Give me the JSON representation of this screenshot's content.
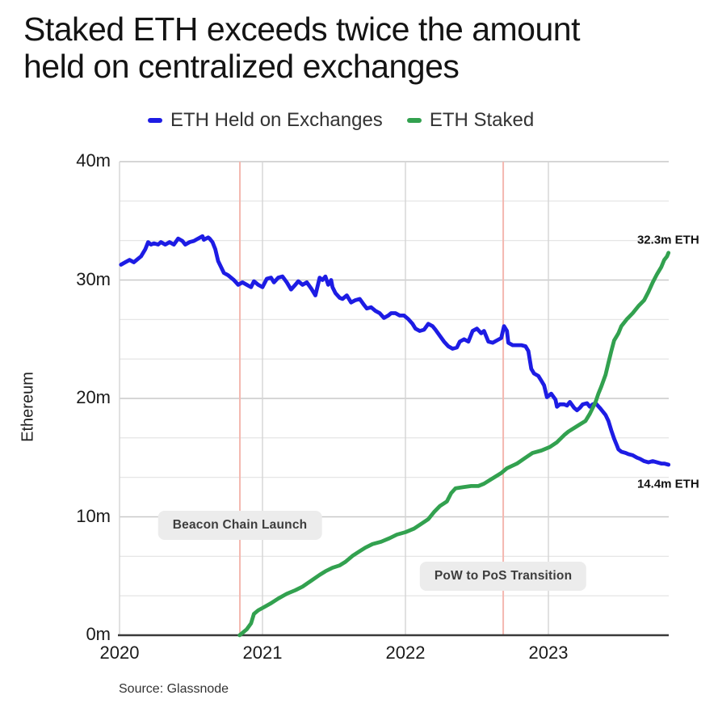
{
  "title": "Staked ETH exceeds twice the amount\nheld on centralized exchanges",
  "source": "Source: Glassnode",
  "chart_data": {
    "type": "line",
    "title": "Staked ETH exceeds twice the amount held on centralized exchanges",
    "xlabel": "",
    "ylabel": "Ethereum",
    "ylim": [
      0,
      40
    ],
    "xlim": [
      2020.0,
      2023.85
    ],
    "grid": "on",
    "grid_minor_step": 3.3333333,
    "legend_position": "top",
    "yticks": [
      {
        "value": 40,
        "label": "40m"
      },
      {
        "value": 30,
        "label": "30m"
      },
      {
        "value": 20,
        "label": "20m"
      },
      {
        "value": 10,
        "label": "10m"
      },
      {
        "value": 0,
        "label": "0m"
      }
    ],
    "xticks": [
      {
        "value": 2020,
        "label": "2020"
      },
      {
        "value": 2021,
        "label": "2021"
      },
      {
        "value": 2022,
        "label": "2022"
      },
      {
        "value": 2023,
        "label": "2023"
      }
    ],
    "event_line_color": "#f4b8b0",
    "events": [
      {
        "x": 2020.842,
        "name": "Beacon Chain Launch"
      },
      {
        "x": 2022.684,
        "name": "PoW to PoS Transition"
      }
    ],
    "series": [
      {
        "name": "ETH Held on Exchanges",
        "color": "#1d1ce4",
        "units": "million ETH",
        "points": [
          [
            2020.01,
            31.3
          ],
          [
            2020.04,
            31.5
          ],
          [
            2020.07,
            31.7
          ],
          [
            2020.1,
            31.5
          ],
          [
            2020.12,
            31.7
          ],
          [
            2020.15,
            32.0
          ],
          [
            2020.18,
            32.6
          ],
          [
            2020.2,
            33.2
          ],
          [
            2020.22,
            33.0
          ],
          [
            2020.24,
            33.1
          ],
          [
            2020.27,
            33.0
          ],
          [
            2020.29,
            33.2
          ],
          [
            2020.32,
            33.0
          ],
          [
            2020.35,
            33.2
          ],
          [
            2020.38,
            33.0
          ],
          [
            2020.41,
            33.5
          ],
          [
            2020.44,
            33.3
          ],
          [
            2020.46,
            33.0
          ],
          [
            2020.49,
            33.2
          ],
          [
            2020.52,
            33.3
          ],
          [
            2020.55,
            33.5
          ],
          [
            2020.58,
            33.7
          ],
          [
            2020.59,
            33.4
          ],
          [
            2020.62,
            33.6
          ],
          [
            2020.63,
            33.5
          ],
          [
            2020.65,
            33.2
          ],
          [
            2020.67,
            32.6
          ],
          [
            2020.69,
            31.6
          ],
          [
            2020.71,
            31.1
          ],
          [
            2020.73,
            30.6
          ],
          [
            2020.76,
            30.4
          ],
          [
            2020.78,
            30.2
          ],
          [
            2020.8,
            30.0
          ],
          [
            2020.83,
            29.6
          ],
          [
            2020.86,
            29.8
          ],
          [
            2020.89,
            29.6
          ],
          [
            2020.92,
            29.4
          ],
          [
            2020.94,
            29.9
          ],
          [
            2020.97,
            29.6
          ],
          [
            2021.0,
            29.4
          ],
          [
            2021.03,
            30.1
          ],
          [
            2021.06,
            30.2
          ],
          [
            2021.08,
            29.8
          ],
          [
            2021.11,
            30.2
          ],
          [
            2021.14,
            30.3
          ],
          [
            2021.17,
            29.8
          ],
          [
            2021.2,
            29.2
          ],
          [
            2021.23,
            29.6
          ],
          [
            2021.25,
            29.9
          ],
          [
            2021.28,
            29.6
          ],
          [
            2021.31,
            29.8
          ],
          [
            2021.34,
            29.3
          ],
          [
            2021.37,
            28.7
          ],
          [
            2021.4,
            30.2
          ],
          [
            2021.42,
            30.0
          ],
          [
            2021.44,
            30.3
          ],
          [
            2021.46,
            29.6
          ],
          [
            2021.48,
            30.0
          ],
          [
            2021.49,
            29.4
          ],
          [
            2021.51,
            28.9
          ],
          [
            2021.54,
            28.5
          ],
          [
            2021.56,
            28.4
          ],
          [
            2021.59,
            28.7
          ],
          [
            2021.62,
            28.1
          ],
          [
            2021.65,
            28.3
          ],
          [
            2021.68,
            28.4
          ],
          [
            2021.71,
            27.9
          ],
          [
            2021.73,
            27.6
          ],
          [
            2021.76,
            27.7
          ],
          [
            2021.79,
            27.4
          ],
          [
            2021.82,
            27.2
          ],
          [
            2021.85,
            26.8
          ],
          [
            2021.88,
            27.0
          ],
          [
            2021.9,
            27.2
          ],
          [
            2021.93,
            27.2
          ],
          [
            2021.96,
            27.0
          ],
          [
            2021.99,
            27.0
          ],
          [
            2022.02,
            26.7
          ],
          [
            2022.05,
            26.3
          ],
          [
            2022.07,
            25.9
          ],
          [
            2022.1,
            25.7
          ],
          [
            2022.13,
            25.8
          ],
          [
            2022.16,
            26.3
          ],
          [
            2022.19,
            26.1
          ],
          [
            2022.21,
            25.8
          ],
          [
            2022.24,
            25.3
          ],
          [
            2022.27,
            24.8
          ],
          [
            2022.3,
            24.4
          ],
          [
            2022.33,
            24.2
          ],
          [
            2022.36,
            24.3
          ],
          [
            2022.38,
            24.8
          ],
          [
            2022.41,
            25.0
          ],
          [
            2022.44,
            24.8
          ],
          [
            2022.47,
            25.7
          ],
          [
            2022.5,
            25.9
          ],
          [
            2022.53,
            25.5
          ],
          [
            2022.55,
            25.7
          ],
          [
            2022.58,
            24.8
          ],
          [
            2022.61,
            24.7
          ],
          [
            2022.64,
            24.9
          ],
          [
            2022.67,
            25.1
          ],
          [
            2022.69,
            26.1
          ],
          [
            2022.71,
            25.7
          ],
          [
            2022.72,
            24.7
          ],
          [
            2022.75,
            24.5
          ],
          [
            2022.78,
            24.5
          ],
          [
            2022.81,
            24.5
          ],
          [
            2022.84,
            24.4
          ],
          [
            2022.86,
            24.0
          ],
          [
            2022.88,
            22.5
          ],
          [
            2022.9,
            22.1
          ],
          [
            2022.93,
            21.9
          ],
          [
            2022.95,
            21.5
          ],
          [
            2022.97,
            21.1
          ],
          [
            2022.99,
            20.1
          ],
          [
            2023.01,
            20.3
          ],
          [
            2023.02,
            20.4
          ],
          [
            2023.05,
            19.9
          ],
          [
            2023.06,
            19.3
          ],
          [
            2023.08,
            19.5
          ],
          [
            2023.11,
            19.5
          ],
          [
            2023.13,
            19.4
          ],
          [
            2023.15,
            19.7
          ],
          [
            2023.18,
            19.2
          ],
          [
            2023.2,
            19.0
          ],
          [
            2023.22,
            19.2
          ],
          [
            2023.24,
            19.5
          ],
          [
            2023.27,
            19.6
          ],
          [
            2023.29,
            19.3
          ],
          [
            2023.31,
            19.5
          ],
          [
            2023.33,
            19.6
          ],
          [
            2023.36,
            19.2
          ],
          [
            2023.38,
            18.9
          ],
          [
            2023.4,
            18.6
          ],
          [
            2023.42,
            18.1
          ],
          [
            2023.44,
            17.3
          ],
          [
            2023.46,
            16.6
          ],
          [
            2023.48,
            16.0
          ],
          [
            2023.49,
            15.7
          ],
          [
            2023.51,
            15.5
          ],
          [
            2023.54,
            15.4
          ],
          [
            2023.56,
            15.3
          ],
          [
            2023.59,
            15.2
          ],
          [
            2023.62,
            15.0
          ],
          [
            2023.64,
            14.9
          ],
          [
            2023.67,
            14.7
          ],
          [
            2023.7,
            14.6
          ],
          [
            2023.73,
            14.7
          ],
          [
            2023.76,
            14.6
          ],
          [
            2023.79,
            14.5
          ],
          [
            2023.81,
            14.5
          ],
          [
            2023.84,
            14.4
          ]
        ]
      },
      {
        "name": "ETH Staked",
        "color": "#32a14f",
        "units": "million ETH",
        "points": [
          [
            2020.84,
            0.0
          ],
          [
            2020.86,
            0.2
          ],
          [
            2020.89,
            0.5
          ],
          [
            2020.92,
            1.0
          ],
          [
            2020.94,
            1.8
          ],
          [
            2020.97,
            2.1
          ],
          [
            2021.0,
            2.3
          ],
          [
            2021.06,
            2.7
          ],
          [
            2021.11,
            3.1
          ],
          [
            2021.17,
            3.5
          ],
          [
            2021.23,
            3.8
          ],
          [
            2021.28,
            4.1
          ],
          [
            2021.34,
            4.6
          ],
          [
            2021.4,
            5.1
          ],
          [
            2021.44,
            5.4
          ],
          [
            2021.49,
            5.7
          ],
          [
            2021.54,
            5.9
          ],
          [
            2021.58,
            6.2
          ],
          [
            2021.63,
            6.7
          ],
          [
            2021.68,
            7.1
          ],
          [
            2021.72,
            7.4
          ],
          [
            2021.77,
            7.7
          ],
          [
            2021.83,
            7.9
          ],
          [
            2021.89,
            8.2
          ],
          [
            2021.94,
            8.5
          ],
          [
            2022.0,
            8.7
          ],
          [
            2022.06,
            9.0
          ],
          [
            2022.11,
            9.4
          ],
          [
            2022.16,
            9.8
          ],
          [
            2022.2,
            10.4
          ],
          [
            2022.24,
            10.9
          ],
          [
            2022.29,
            11.3
          ],
          [
            2022.32,
            12.0
          ],
          [
            2022.35,
            12.4
          ],
          [
            2022.4,
            12.5
          ],
          [
            2022.46,
            12.6
          ],
          [
            2022.51,
            12.6
          ],
          [
            2022.55,
            12.8
          ],
          [
            2022.59,
            13.1
          ],
          [
            2022.63,
            13.4
          ],
          [
            2022.67,
            13.7
          ],
          [
            2022.71,
            14.1
          ],
          [
            2022.78,
            14.5
          ],
          [
            2022.84,
            15.0
          ],
          [
            2022.89,
            15.4
          ],
          [
            2022.95,
            15.6
          ],
          [
            2023.01,
            15.9
          ],
          [
            2023.06,
            16.3
          ],
          [
            2023.11,
            16.9
          ],
          [
            2023.14,
            17.2
          ],
          [
            2023.18,
            17.5
          ],
          [
            2023.22,
            17.8
          ],
          [
            2023.26,
            18.1
          ],
          [
            2023.29,
            18.7
          ],
          [
            2023.33,
            19.7
          ],
          [
            2023.35,
            20.4
          ],
          [
            2023.37,
            21.0
          ],
          [
            2023.4,
            22.0
          ],
          [
            2023.42,
            23.0
          ],
          [
            2023.44,
            24.0
          ],
          [
            2023.46,
            24.9
          ],
          [
            2023.49,
            25.5
          ],
          [
            2023.51,
            26.1
          ],
          [
            2023.55,
            26.7
          ],
          [
            2023.59,
            27.2
          ],
          [
            2023.63,
            27.8
          ],
          [
            2023.67,
            28.3
          ],
          [
            2023.7,
            29.0
          ],
          [
            2023.73,
            29.8
          ],
          [
            2023.76,
            30.5
          ],
          [
            2023.79,
            31.1
          ],
          [
            2023.81,
            31.7
          ],
          [
            2023.83,
            32.0
          ],
          [
            2023.84,
            32.3
          ]
        ]
      }
    ],
    "annotations": {
      "boxes": [
        {
          "text": "Beacon Chain Launch",
          "x": 2020.842,
          "y": 9.3
        },
        {
          "text": "PoW to PoS Transition",
          "x": 2022.684,
          "y": 5.0
        }
      ],
      "value_labels": [
        {
          "text": "32.3m ETH",
          "x": 2023.84,
          "y": 33.35,
          "series": "ETH Staked"
        },
        {
          "text": "14.4m ETH",
          "x": 2023.84,
          "y": 12.75,
          "series": "ETH Held on Exchanges"
        }
      ]
    }
  }
}
